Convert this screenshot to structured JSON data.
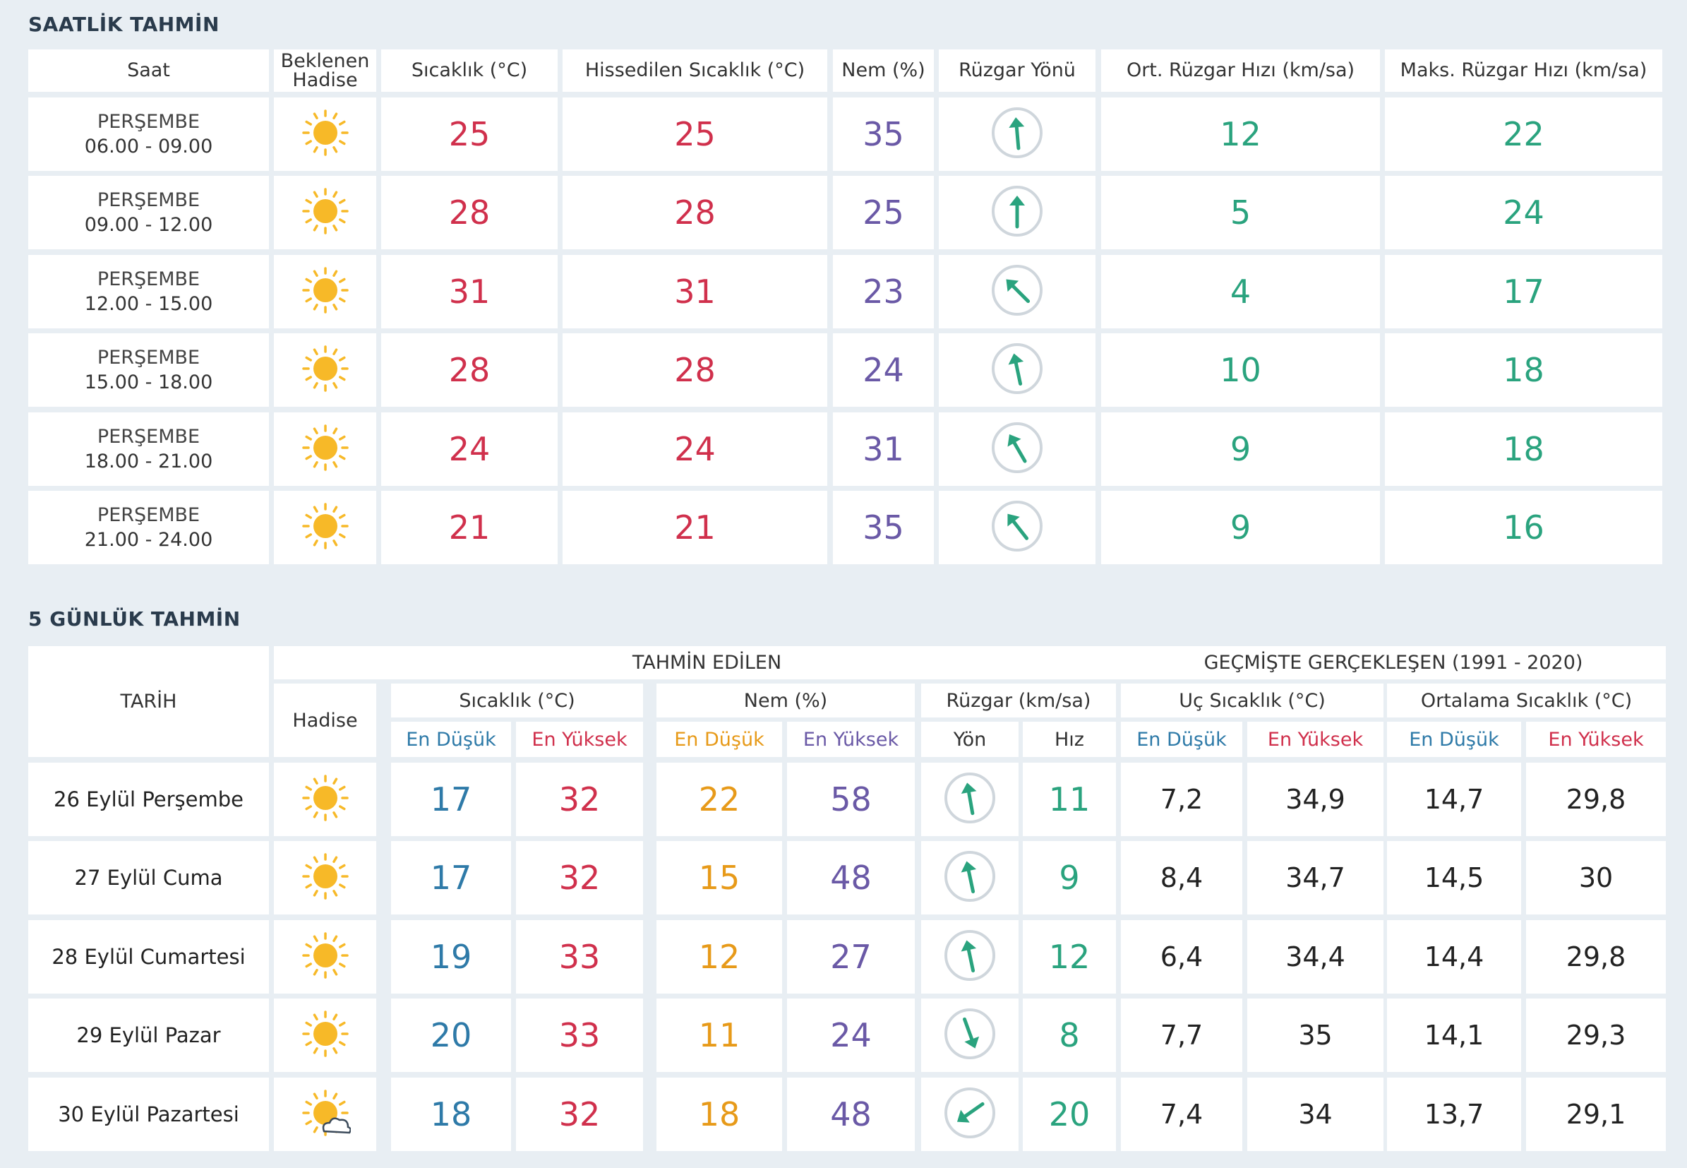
{
  "hourly": {
    "title": "SAATLİK TAHMİN",
    "headers": {
      "saat": "Saat",
      "hadise_line1": "Beklenen",
      "hadise_line2": "Hadise",
      "sicaklik": "Sıcaklık (°C)",
      "hissedilen": "Hissedilen Sıcaklık (°C)",
      "nem": "Nem (%)",
      "ruzgar_yonu": "Rüzgar Yönü",
      "ort_ruzgar": "Ort. Rüzgar Hızı (km/sa)",
      "maks_ruzgar": "Maks. Rüzgar Hızı (km/sa)"
    },
    "rows": [
      {
        "day": "PERŞEMBE",
        "time": "06.00 - 09.00",
        "icon": "sun-icon",
        "temp": "25",
        "feels": "25",
        "humidity": "35",
        "wind_dir_deg": 175,
        "wind_avg": "12",
        "wind_max": "22"
      },
      {
        "day": "PERŞEMBE",
        "time": "09.00 - 12.00",
        "icon": "sun-icon",
        "temp": "28",
        "feels": "28",
        "humidity": "25",
        "wind_dir_deg": 180,
        "wind_avg": "5",
        "wind_max": "24"
      },
      {
        "day": "PERŞEMBE",
        "time": "12.00 - 15.00",
        "icon": "sun-icon",
        "temp": "31",
        "feels": "31",
        "humidity": "23",
        "wind_dir_deg": 135,
        "wind_avg": "4",
        "wind_max": "17"
      },
      {
        "day": "PERŞEMBE",
        "time": "15.00 - 18.00",
        "icon": "sun-icon",
        "temp": "28",
        "feels": "28",
        "humidity": "24",
        "wind_dir_deg": 168,
        "wind_avg": "10",
        "wind_max": "18"
      },
      {
        "day": "PERŞEMBE",
        "time": "18.00 - 21.00",
        "icon": "sun-icon",
        "temp": "24",
        "feels": "24",
        "humidity": "31",
        "wind_dir_deg": 150,
        "wind_avg": "9",
        "wind_max": "18"
      },
      {
        "day": "PERŞEMBE",
        "time": "21.00 - 24.00",
        "icon": "sun-icon",
        "temp": "21",
        "feels": "21",
        "humidity": "35",
        "wind_dir_deg": 142,
        "wind_avg": "9",
        "wind_max": "16"
      }
    ]
  },
  "daily": {
    "title": "5 GÜNLÜK TAHMİN",
    "headers": {
      "tarih": "TARİH",
      "tahmin": "TAHMİN EDİLEN",
      "gecmis": "GEÇMİŞTE GERÇEKLEŞEN (1991 - 2020)",
      "hadise": "Hadise",
      "sicaklik": "Sıcaklık (°C)",
      "nem": "Nem (%)",
      "ruzgar": "Rüzgar (km/sa)",
      "uc": "Uç Sıcaklık (°C)",
      "ortalama": "Ortalama Sıcaklık (°C)",
      "en_dusuk": "En Düşük",
      "en_yuksek": "En Yüksek",
      "yon": "Yön",
      "hiz": "Hız"
    },
    "rows": [
      {
        "date": "26 Eylül Perşembe",
        "icon": "sun-icon",
        "t_min": "17",
        "t_max": "32",
        "h_min": "22",
        "h_max": "58",
        "wind_dir_deg": 170,
        "wind_speed": "11",
        "x_min": "7,2",
        "x_max": "34,9",
        "a_min": "14,7",
        "a_max": "29,8"
      },
      {
        "date": "27 Eylül Cuma",
        "icon": "sun-icon",
        "t_min": "17",
        "t_max": "32",
        "h_min": "15",
        "h_max": "48",
        "wind_dir_deg": 168,
        "wind_speed": "9",
        "x_min": "8,4",
        "x_max": "34,7",
        "a_min": "14,5",
        "a_max": "30"
      },
      {
        "date": "28 Eylül Cumartesi",
        "icon": "sun-icon",
        "t_min": "19",
        "t_max": "33",
        "h_min": "12",
        "h_max": "27",
        "wind_dir_deg": 168,
        "wind_speed": "12",
        "x_min": "6,4",
        "x_max": "34,4",
        "a_min": "14,4",
        "a_max": "29,8"
      },
      {
        "date": "29 Eylül Pazar",
        "icon": "sun-icon",
        "t_min": "20",
        "t_max": "33",
        "h_min": "11",
        "h_max": "24",
        "wind_dir_deg": 340,
        "wind_speed": "8",
        "x_min": "7,7",
        "x_max": "35",
        "a_min": "14,1",
        "a_max": "29,3"
      },
      {
        "date": "30 Eylül Pazartesi",
        "icon": "sun-cloud-icon",
        "t_min": "18",
        "t_max": "32",
        "h_min": "18",
        "h_max": "48",
        "wind_dir_deg": 55,
        "wind_speed": "20",
        "x_min": "7,4",
        "x_max": "34",
        "a_min": "13,7",
        "a_max": "29,1"
      }
    ]
  },
  "colors": {
    "accent_red": "#d0304c",
    "accent_purple": "#6a59a6",
    "accent_green": "#2aa37e",
    "accent_blue": "#2e7aa8",
    "accent_orange": "#e79a19",
    "sun": "#f7b928"
  }
}
